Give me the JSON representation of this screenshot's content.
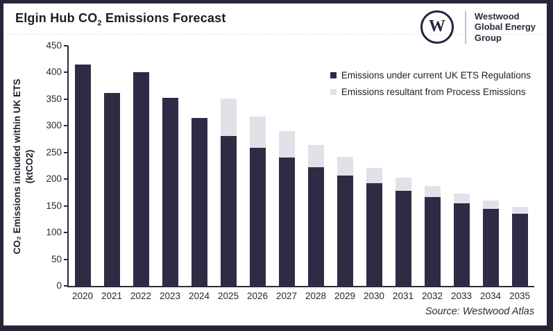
{
  "header": {
    "title": {
      "prefix": "Elgin Hub CO",
      "subscript": "2",
      "suffix": " Emissions Forecast"
    },
    "logo": {
      "monogram": "W",
      "name_line1": "Westwood",
      "name_line2": "Global Energy",
      "name_line3": "Group"
    }
  },
  "chart_data": {
    "type": "bar",
    "stacked": true,
    "title": "Elgin Hub CO2 Emissions Forecast",
    "categories": [
      "2020",
      "2021",
      "2022",
      "2023",
      "2024",
      "2025",
      "2026",
      "2027",
      "2028",
      "2029",
      "2030",
      "2031",
      "2032",
      "2033",
      "2034",
      "2035"
    ],
    "series": [
      {
        "name": "Emissions under current UK ETS Regulations",
        "color": "#2e2b44",
        "values": [
          415,
          361,
          400,
          353,
          315,
          281,
          259,
          241,
          222,
          207,
          192,
          178,
          166,
          155,
          145,
          135
        ]
      },
      {
        "name": "Emissions resultant from Process Emissions",
        "color": "#e2e1e8",
        "values": [
          0,
          0,
          0,
          0,
          0,
          70,
          58,
          49,
          42,
          35,
          29,
          25,
          21,
          18,
          15,
          13
        ]
      }
    ],
    "ylabel_line1": "CO₂ Emissions included within UK ETS",
    "ylabel_line2": "(ktCO2)",
    "ylim": [
      0,
      450
    ],
    "ytick_step": 50,
    "grid": false,
    "legend_position": "top-right"
  },
  "footer": {
    "source": "Source: Westwood Atlas"
  },
  "colors": {
    "border": "#272339",
    "axis": "#2b2942",
    "bar_dark": "#2e2b44",
    "bar_light": "#e2e1e8"
  }
}
